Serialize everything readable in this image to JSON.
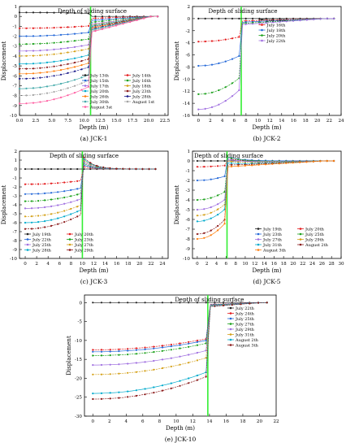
{
  "colors": {
    "axis": "#000000",
    "sliding_line": "#33ee33",
    "palette": [
      "#222222",
      "#e41a1c",
      "#2468d8",
      "#1aa01a",
      "#a070e0",
      "#d4a017",
      "#00aacc",
      "#8b1a1a",
      "#ff7f0e",
      "#1a1a8b",
      "#4aa",
      "#a3a3a3",
      "#ff5fa2"
    ]
  },
  "chart_data": [
    {
      "id": "jck1",
      "type": "line",
      "caption": "(a) JCK-1",
      "annotation": "Depth of sliding surface",
      "xlabel": "Depth (m)",
      "ylabel": "Displacement",
      "xlim": [
        0,
        23
      ],
      "ylim": [
        -10,
        1
      ],
      "x_ticks": [
        "0.0",
        "2.5",
        "5.0",
        "7.5",
        "10.0",
        "12.5",
        "15.0",
        "17.5",
        "20.0",
        "22.5"
      ],
      "x_tick_values": [
        0,
        2.5,
        5,
        7.5,
        10,
        12.5,
        15,
        17.5,
        20,
        22.5
      ],
      "y_ticks": [
        1,
        0,
        -1,
        -2,
        -3,
        -4,
        -5,
        -6,
        -7,
        -8,
        -9,
        -10
      ],
      "sliding_depth": 11,
      "legend_position": "bottom-right",
      "legend_columns": 2,
      "series": [
        {
          "name": "July 13th",
          "near": 0.4,
          "far": 0.0,
          "rise": 0
        },
        {
          "name": "July 14th",
          "near": -1.2,
          "far": -0.2,
          "rise": 0
        },
        {
          "name": "July 15th",
          "near": -2.0,
          "far": -0.4,
          "rise": 0
        },
        {
          "name": "July 16th",
          "near": -2.8,
          "far": -0.6,
          "rise": 0
        },
        {
          "name": "July 17th",
          "near": -3.5,
          "far": -0.8,
          "rise": 0
        },
        {
          "name": "July 18th",
          "near": -4.0,
          "far": -0.9,
          "rise": 0
        },
        {
          "name": "July 20th",
          "near": -4.8,
          "far": -1.0,
          "rise": 0
        },
        {
          "name": "July 23th",
          "near": -5.3,
          "far": -1.1,
          "rise": 0
        },
        {
          "name": "July 26th",
          "near": -5.8,
          "far": -1.2,
          "rise": 0
        },
        {
          "name": "July 28th",
          "near": -6.3,
          "far": -1.3,
          "rise": 0
        },
        {
          "name": "July 30th",
          "near": -7.3,
          "far": -1.4,
          "rise": 0
        },
        {
          "name": "August 1st",
          "near": -8.0,
          "far": -1.5,
          "rise": 0
        },
        {
          "name": "August 3st",
          "near": -8.8,
          "far": -1.6,
          "rise": 0
        }
      ]
    },
    {
      "id": "jck2",
      "type": "line",
      "caption": "(b) JCK-2",
      "annotation": "Depth of sliding surface",
      "xlabel": "Depth (m)",
      "ylabel": "Displacement",
      "xlim": [
        -1,
        24
      ],
      "ylim": [
        -16,
        2
      ],
      "x_ticks": [
        "0",
        "2",
        "4",
        "6",
        "8",
        "10",
        "12",
        "14",
        "16",
        "18",
        "20",
        "22",
        "24"
      ],
      "x_tick_values": [
        0,
        2,
        4,
        6,
        8,
        10,
        12,
        14,
        16,
        18,
        20,
        22,
        24
      ],
      "y_ticks": [
        2,
        0,
        -2,
        -4,
        -6,
        -8,
        -10,
        -12,
        -14,
        -16
      ],
      "sliding_depth": 7.2,
      "legend_position": "top-center",
      "legend_columns": 1,
      "series": [
        {
          "name": "July 15th",
          "near": 0.0,
          "far": 0.0,
          "rise": 0
        },
        {
          "name": "July 16th",
          "near": -3.8,
          "far": -0.4,
          "rise": 0
        },
        {
          "name": "July 18th",
          "near": -7.8,
          "far": -0.6,
          "rise": 0
        },
        {
          "name": "July 20th",
          "near": -12.5,
          "far": -0.8,
          "rise": 0
        },
        {
          "name": "July 22th",
          "near": -15.0,
          "far": -1.0,
          "rise": 0
        }
      ]
    },
    {
      "id": "jck3",
      "type": "line",
      "caption": "(c) JCK-3",
      "annotation": "Depth of sliding surface",
      "xlabel": "Depth (m)",
      "ylabel": "Displacement",
      "xlim": [
        -1,
        25
      ],
      "ylim": [
        -10,
        2
      ],
      "x_ticks": [
        "0",
        "2",
        "4",
        "6",
        "8",
        "10",
        "12",
        "14",
        "16",
        "18",
        "20",
        "22",
        "24"
      ],
      "x_tick_values": [
        0,
        2,
        4,
        6,
        8,
        10,
        12,
        14,
        16,
        18,
        20,
        22,
        24
      ],
      "y_ticks": [
        2,
        1,
        0,
        -1,
        -2,
        -3,
        -4,
        -5,
        -6,
        -7,
        -8,
        -9,
        -10
      ],
      "sliding_depth": 10,
      "legend_position": "bottom",
      "legend_columns": 2,
      "series": [
        {
          "name": "July 19th",
          "near": 0.0,
          "far": 0.0,
          "rise": 0
        },
        {
          "name": "July 20th",
          "near": -1.7,
          "far": 0.0,
          "rise": 0.3
        },
        {
          "name": "July 22th",
          "near": -2.8,
          "far": 0.0,
          "rise": 0.5
        },
        {
          "name": "July 23th",
          "near": -3.6,
          "far": 0.0,
          "rise": 0.7
        },
        {
          "name": "July 25th",
          "near": -4.4,
          "far": 0.0,
          "rise": 0.9
        },
        {
          "name": "July 27th",
          "near": -5.3,
          "far": 0.0,
          "rise": 1.1
        },
        {
          "name": "July 28th",
          "near": -6.0,
          "far": 0.0,
          "rise": 1.3
        },
        {
          "name": "July 29th",
          "near": -6.7,
          "far": 0.0,
          "rise": 1.5
        }
      ]
    },
    {
      "id": "jck5",
      "type": "line",
      "caption": "(d) JCK-5",
      "annotation": "Depth of sliding surface",
      "xlabel": "Depth (m)",
      "ylabel": "Displacement",
      "xlim": [
        -1,
        30
      ],
      "ylim": [
        -10,
        1
      ],
      "x_ticks": [
        "0",
        "2",
        "4",
        "6",
        "8",
        "10",
        "12",
        "14",
        "16",
        "18",
        "20",
        "22",
        "24",
        "26",
        "28",
        "30"
      ],
      "x_tick_values": [
        0,
        2,
        4,
        6,
        8,
        10,
        12,
        14,
        16,
        18,
        20,
        22,
        24,
        26,
        28,
        30
      ],
      "y_ticks": [
        1,
        0,
        -1,
        -2,
        -3,
        -4,
        -5,
        -6,
        -7,
        -8,
        -9,
        -10
      ],
      "sliding_depth": 6.2,
      "legend_position": "bottom-right",
      "legend_columns": 2,
      "series": [
        {
          "name": "July 19th",
          "near": 0.0,
          "far": 0.0,
          "rise": 0
        },
        {
          "name": "July 20th",
          "near": -0.6,
          "far": 0.0,
          "rise": 0.2
        },
        {
          "name": "July 23th",
          "near": -2.0,
          "far": 0.0,
          "rise": 0.4
        },
        {
          "name": "July 25th",
          "near": -4.0,
          "far": -0.1,
          "rise": 0.5
        },
        {
          "name": "July 27th",
          "near": -5.0,
          "far": -0.2,
          "rise": 0.4
        },
        {
          "name": "July 29th",
          "near": -5.6,
          "far": -0.3,
          "rise": 0.3
        },
        {
          "name": "July 31th",
          "near": -6.2,
          "far": -0.4,
          "rise": 0.2
        },
        {
          "name": "August 2th",
          "near": -7.5,
          "far": -0.5,
          "rise": 0.1
        },
        {
          "name": "August 3th",
          "near": -8.0,
          "far": -0.6,
          "rise": 0
        }
      ]
    },
    {
      "id": "jck10",
      "type": "line",
      "caption": "(e) JCK-10",
      "annotation": "Depth of sliding surface",
      "xlabel": "Depth (m)",
      "ylabel": "Displacement",
      "xlim": [
        -1,
        22
      ],
      "ylim": [
        -30,
        2
      ],
      "x_ticks": [
        "0",
        "2",
        "4",
        "6",
        "8",
        "10",
        "12",
        "14",
        "16",
        "18",
        "20",
        "22"
      ],
      "x_tick_values": [
        0,
        2,
        4,
        6,
        8,
        10,
        12,
        14,
        16,
        18,
        20,
        22
      ],
      "y_ticks": [
        0,
        -5,
        -10,
        -15,
        -20,
        -25,
        -30
      ],
      "sliding_depth": 13.8,
      "legend_position": "top-right",
      "legend_columns": 1,
      "series": [
        {
          "name": "July 22th",
          "near": 0.0,
          "far": 0.0,
          "rise": 0
        },
        {
          "name": "July 24th",
          "near": -12.5,
          "far": -0.5,
          "rise": 0
        },
        {
          "name": "July 25th",
          "near": -13.0,
          "far": -0.6,
          "rise": 0
        },
        {
          "name": "July 27th",
          "near": -14.0,
          "far": -0.7,
          "rise": 0
        },
        {
          "name": "July 29th",
          "near": -16.5,
          "far": -0.8,
          "rise": 0
        },
        {
          "name": "July 31th",
          "near": -19.0,
          "far": -0.9,
          "rise": 0
        },
        {
          "name": "August 2th",
          "near": -24.0,
          "far": -1.0,
          "rise": 0
        },
        {
          "name": "August 3th",
          "near": -25.5,
          "far": -1.1,
          "rise": 0
        }
      ]
    }
  ]
}
